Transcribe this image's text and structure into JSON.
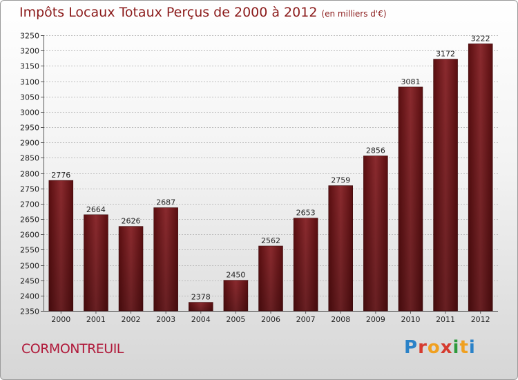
{
  "chart_data": {
    "type": "bar",
    "title": "Impôts Locaux Totaux Perçus de 2000 à 2012",
    "subtitle": "(en milliers d'€)",
    "categories": [
      "2000",
      "2001",
      "2002",
      "2003",
      "2004",
      "2005",
      "2006",
      "2007",
      "2008",
      "2009",
      "2010",
      "2011",
      "2012"
    ],
    "values": [
      2776,
      2664,
      2626,
      2687,
      2378,
      2450,
      2562,
      2653,
      2759,
      2856,
      3081,
      3172,
      3222
    ],
    "xlabel": "",
    "ylabel": "",
    "ylim": [
      2350,
      3250
    ],
    "ytick_step": 50,
    "grid": true,
    "bar_color": "#6a1518"
  },
  "footer": {
    "city": "CORMONTREUIL",
    "logo_text": "Proxiti"
  }
}
